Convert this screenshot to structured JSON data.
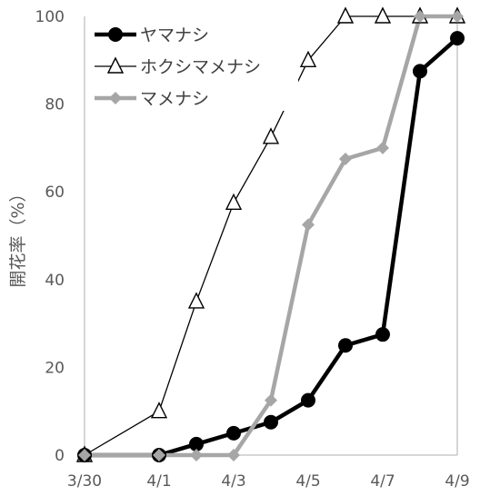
{
  "chart_data": {
    "type": "line",
    "xlabel": "",
    "ylabel": "開花率（%）",
    "x_tick_labels": [
      "3/30",
      "4/1",
      "4/3",
      "4/5",
      "4/7",
      "4/9"
    ],
    "y_tick_labels": [
      "0",
      "20",
      "40",
      "60",
      "80",
      "100"
    ],
    "xlim": [
      "3/30",
      "4/9"
    ],
    "ylim": [
      0,
      100
    ],
    "grid": false,
    "legend_position": "top-left",
    "series": [
      {
        "name": "ヤマナシ",
        "color": "#000000",
        "marker": "circle-filled",
        "points": [
          [
            "3/30",
            0
          ],
          [
            "4/1",
            0
          ],
          [
            "4/2",
            2.5
          ],
          [
            "4/3",
            5
          ],
          [
            "4/4",
            7.5
          ],
          [
            "4/5",
            12.5
          ],
          [
            "4/6",
            25
          ],
          [
            "4/7",
            27.5
          ],
          [
            "4/8",
            87.5
          ],
          [
            "4/9",
            95
          ]
        ]
      },
      {
        "name": "ホクシマメナシ",
        "color": "#000000",
        "marker": "triangle-open",
        "points": [
          [
            "3/30",
            0
          ],
          [
            "4/1",
            10
          ],
          [
            "4/2",
            35
          ],
          [
            "4/3",
            57.5
          ],
          [
            "4/4",
            72.5
          ],
          [
            "4/5",
            90
          ],
          [
            "4/6",
            100
          ],
          [
            "4/7",
            100
          ],
          [
            "4/8",
            100
          ],
          [
            "4/9",
            100
          ]
        ]
      },
      {
        "name": "マメナシ",
        "color": "#a6a6a6",
        "marker": "diamond-filled",
        "points": [
          [
            "3/30",
            0
          ],
          [
            "4/1",
            0
          ],
          [
            "4/2",
            0
          ],
          [
            "4/3",
            0
          ],
          [
            "4/4",
            12.5
          ],
          [
            "4/5",
            52.5
          ],
          [
            "4/6",
            67.5
          ],
          [
            "4/7",
            70
          ],
          [
            "4/8",
            100
          ],
          [
            "4/9",
            100
          ]
        ]
      }
    ]
  }
}
